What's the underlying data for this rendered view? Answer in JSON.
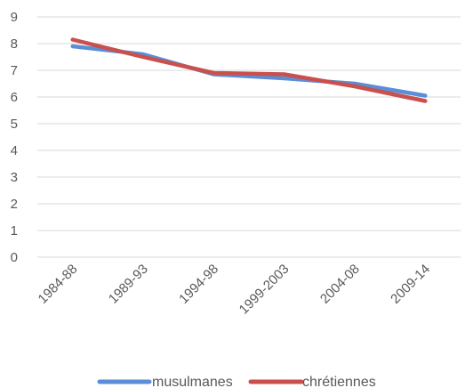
{
  "chart_data": {
    "type": "line",
    "categories": [
      "1984-88",
      "1989-93",
      "1994-98",
      "1999-2003",
      "2004-08",
      "2009-14"
    ],
    "series": [
      {
        "name": "musulmanes",
        "color": "#5b8ed6",
        "values": [
          7.9,
          7.6,
          6.85,
          6.7,
          6.5,
          6.05
        ]
      },
      {
        "name": "chrétiennes",
        "color": "#c9504c",
        "values": [
          8.15,
          7.5,
          6.9,
          6.85,
          6.4,
          5.85
        ]
      }
    ],
    "yticks": [
      0,
      1,
      2,
      3,
      4,
      5,
      6,
      7,
      8,
      9
    ],
    "ylim": [
      0,
      9
    ],
    "grid": true,
    "legend": "bottom"
  }
}
